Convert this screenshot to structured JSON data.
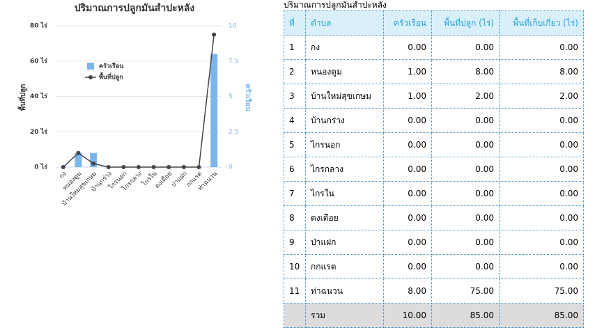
{
  "chart_data": {
    "type": "combo",
    "title": "ปริมาณการปลูกมันสำปะหลัง",
    "y_label": "พื้นที่ปลูก",
    "y2_label": "ครัวเรือน",
    "categories": [
      "กง",
      "หนองตูม",
      "บ้านใหม่สุขเกษม",
      "บ้านกร่าง",
      "ไกรนอก",
      "ไกรกลาง",
      "ไกรใน",
      "ดงเดือย",
      "ป่าแฝก",
      "กกแรต",
      "ท่าฉนวน"
    ],
    "series": [
      {
        "name": "ครัวเรือน",
        "type": "bar",
        "axis": "y2",
        "color": "#7cb5ec",
        "values": [
          0,
          1,
          1,
          0,
          0,
          0,
          0,
          0,
          0,
          0,
          8
        ]
      },
      {
        "name": "พื้นที่ปลูก",
        "type": "line",
        "color": "#434348",
        "values": [
          0,
          8,
          2,
          0,
          0,
          0,
          0,
          0,
          0,
          0,
          75
        ]
      }
    ],
    "ylim": [
      0,
      80
    ],
    "yticks": [
      {
        "value": 0,
        "label": "0 ไร่"
      },
      {
        "value": 20,
        "label": "20 ไร่"
      },
      {
        "value": 40,
        "label": "40 ไร่"
      },
      {
        "value": 60,
        "label": "60 ไร่"
      },
      {
        "value": 80,
        "label": "80 ไร่"
      }
    ],
    "y2lim": [
      0,
      10
    ],
    "y2ticks": [
      0,
      2.5,
      5,
      7.5,
      10
    ],
    "grid": true
  },
  "table": {
    "title": "ปริมาณการปลูกมันสำปะหลัง",
    "headers": [
      "ที่",
      "ตำบล",
      "ครัวเรือน",
      "พื้นที่ปลูก (ไร่)",
      "พื้นที่เก็บเกี่ยว (ไร่)"
    ],
    "rows": [
      [
        "1",
        "กง",
        "0.00",
        "0.00",
        "0.00"
      ],
      [
        "2",
        "หนองตูม",
        "1.00",
        "8.00",
        "8.00"
      ],
      [
        "3",
        "บ้านใหม่สุขเกษม",
        "1.00",
        "2.00",
        "2.00"
      ],
      [
        "4",
        "บ้านกร่าง",
        "0.00",
        "0.00",
        "0.00"
      ],
      [
        "5",
        "ไกรนอก",
        "0.00",
        "0.00",
        "0.00"
      ],
      [
        "6",
        "ไกรกลาง",
        "0.00",
        "0.00",
        "0.00"
      ],
      [
        "7",
        "ไกรใน",
        "0.00",
        "0.00",
        "0.00"
      ],
      [
        "8",
        "ดงเดือย",
        "0.00",
        "0.00",
        "0.00"
      ],
      [
        "9",
        "ป่าแฝก",
        "0.00",
        "0.00",
        "0.00"
      ],
      [
        "10",
        "กกแรต",
        "0.00",
        "0.00",
        "0.00"
      ],
      [
        "11",
        "ท่าฉนวน",
        "8.00",
        "75.00",
        "75.00"
      ]
    ],
    "footer": [
      "รวม",
      "10.00",
      "85.00",
      "85.00"
    ]
  }
}
